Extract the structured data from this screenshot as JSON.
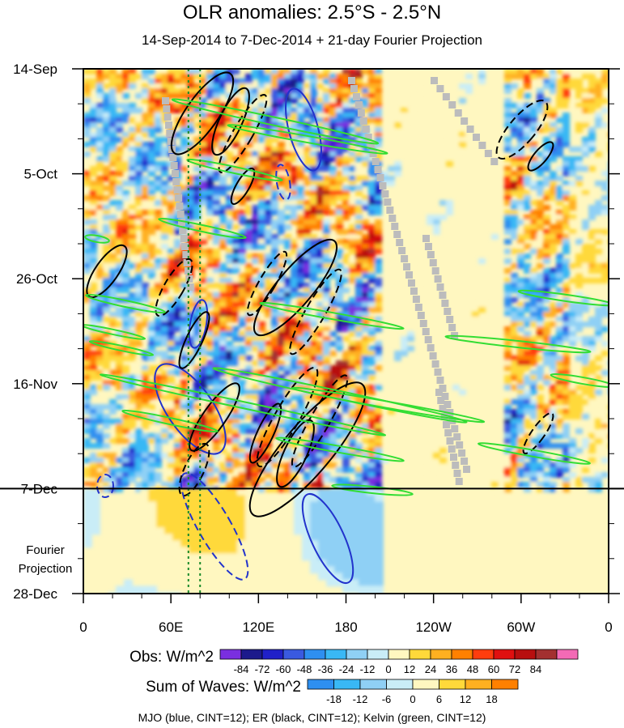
{
  "title": "OLR anomalies: 2.5°S - 2.5°N",
  "subtitle": "14-Sep-2014 to 7-Dec-2014 + 21-day Fourier Projection",
  "footer": "MJO (blue, CINT=12); ER (black, CINT=12); Kelvin (green, CINT=12)",
  "chart_data": {
    "type": "heatmap",
    "x_axis": {
      "ticks": [
        "0",
        "60E",
        "120E",
        "180",
        "120W",
        "60W",
        "0"
      ],
      "values": [
        0,
        60,
        120,
        180,
        240,
        300,
        360
      ]
    },
    "y_axis": {
      "ticks": [
        "14-Sep",
        "5-Oct",
        "26-Oct",
        "16-Nov",
        "7-Dec",
        "28-Dec"
      ],
      "days": [
        0,
        21,
        42,
        63,
        84,
        105
      ]
    },
    "projection_label": [
      "Fourier",
      "Projection"
    ],
    "projection_start_day": 84,
    "dotted_lines_lon": [
      72,
      80
    ],
    "obs_legend": {
      "label": "Obs: W/m^2",
      "ticks": [
        "-84",
        "-72",
        "-60",
        "-48",
        "-36",
        "-24",
        "-12",
        "0",
        "12",
        "24",
        "36",
        "48",
        "60",
        "72",
        "84"
      ],
      "colors": [
        "#7a2fe0",
        "#1c1a8c",
        "#2020c8",
        "#3a5ae0",
        "#2e8ff0",
        "#39b8f5",
        "#8fd0f5",
        "#c9edf7",
        "#fff7c0",
        "#ffd93a",
        "#ffb020",
        "#ff8000",
        "#ff3d0e",
        "#e01010",
        "#b80f0f",
        "#a33030",
        "#f36ab5"
      ]
    },
    "waves_legend": {
      "label": "Sum of Waves: W/m^2",
      "ticks": [
        "-18",
        "-12",
        "-6",
        "0",
        "6",
        "12",
        "18"
      ],
      "colors": [
        "#2e8ff0",
        "#39b8f5",
        "#8fd0f5",
        "#c9edf7",
        "#fff7c0",
        "#ffd93a",
        "#ffb020",
        "#ff8000"
      ]
    },
    "series_colors": {
      "MJO": "#2233cc",
      "ER": "#000000",
      "Kelvin": "#33dd33"
    }
  }
}
